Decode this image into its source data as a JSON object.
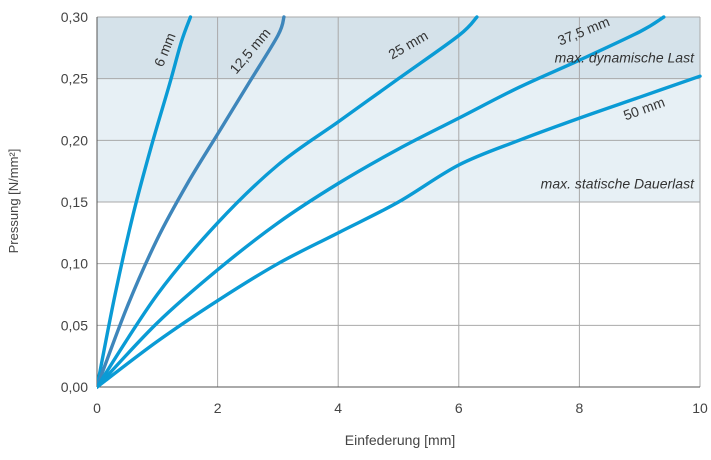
{
  "chart_data": {
    "type": "line",
    "xlabel": "Einfederung [mm]",
    "ylabel": "Pressung [N/mm²]",
    "xlim": [
      0,
      10
    ],
    "ylim": [
      0,
      0.3
    ],
    "x_ticks": [
      0,
      2,
      4,
      6,
      8,
      10
    ],
    "x_tick_labels": [
      "0",
      "2",
      "4",
      "6",
      "8",
      "10"
    ],
    "y_ticks": [
      0,
      0.05,
      0.1,
      0.15,
      0.2,
      0.25,
      0.3
    ],
    "y_tick_labels": [
      "0,00",
      "0,05",
      "0,10",
      "0,15",
      "0,20",
      "0,25",
      "0,30"
    ],
    "grid": true,
    "bands": [
      {
        "from": 0.25,
        "to": 0.3,
        "color": "#d5e2ea",
        "label": "max. dynamische Last"
      },
      {
        "from": 0.15,
        "to": 0.25,
        "color": "#e7f0f5",
        "label": "max. statische Dauerlast"
      }
    ],
    "series": [
      {
        "name": "6 mm",
        "color": "#0a9bd5",
        "x": [
          0,
          0.3,
          0.6,
          0.9,
          1.2,
          1.4,
          1.55
        ],
        "y": [
          0,
          0.075,
          0.14,
          0.195,
          0.245,
          0.28,
          0.3
        ]
      },
      {
        "name": "12,5 mm",
        "color": "#3e86bb",
        "x": [
          0,
          0.5,
          1.0,
          1.5,
          2.0,
          2.5,
          3.0,
          3.1
        ],
        "y": [
          0,
          0.065,
          0.12,
          0.165,
          0.205,
          0.245,
          0.285,
          0.3
        ]
      },
      {
        "name": "25 mm",
        "color": "#0a9bd5",
        "x": [
          0,
          1,
          2,
          3,
          4,
          5,
          6,
          6.3
        ],
        "y": [
          0,
          0.075,
          0.133,
          0.18,
          0.215,
          0.25,
          0.285,
          0.3
        ]
      },
      {
        "name": "37,5 mm",
        "color": "#0a9bd5",
        "x": [
          0,
          1,
          2,
          3,
          4,
          5,
          6,
          7,
          8,
          9,
          9.4
        ],
        "y": [
          0,
          0.052,
          0.095,
          0.133,
          0.165,
          0.193,
          0.218,
          0.243,
          0.265,
          0.288,
          0.3
        ]
      },
      {
        "name": "50 mm",
        "color": "#0a9bd5",
        "x": [
          0,
          1,
          2,
          3,
          4,
          5,
          6,
          7,
          8,
          9,
          10
        ],
        "y": [
          0,
          0.037,
          0.07,
          0.1,
          0.125,
          0.15,
          0.18,
          0.2,
          0.218,
          0.235,
          0.252
        ]
      }
    ],
    "annotations": [
      {
        "text": "6 mm",
        "x": 1.2,
        "y": 0.272,
        "angle": -68,
        "anchor": "middle"
      },
      {
        "text": "12,5 mm",
        "x": 2.6,
        "y": 0.27,
        "angle": -50,
        "anchor": "middle"
      },
      {
        "text": "25 mm",
        "x": 5.2,
        "y": 0.274,
        "angle": -30,
        "anchor": "middle"
      },
      {
        "text": "37,5 mm",
        "x": 8.1,
        "y": 0.285,
        "angle": -22,
        "anchor": "middle"
      },
      {
        "text": "max. dynamische Last",
        "x": 9.9,
        "y": 0.263,
        "angle": 0,
        "anchor": "end",
        "italic": true
      },
      {
        "text": "50 mm",
        "x": 9.1,
        "y": 0.222,
        "angle": -20,
        "anchor": "middle"
      },
      {
        "text": "max. statische Dauerlast",
        "x": 9.9,
        "y": 0.161,
        "angle": 0,
        "anchor": "end",
        "italic": true
      }
    ]
  }
}
